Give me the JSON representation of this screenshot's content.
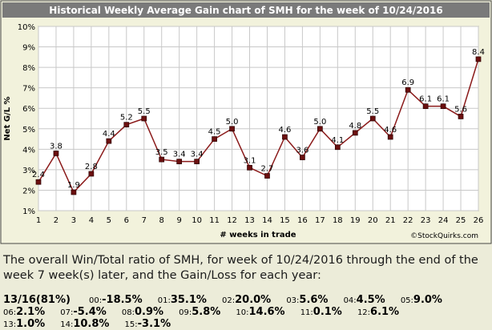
{
  "chart_data": {
    "type": "line",
    "title": "Historical Weekly Average Gain chart of SMH for the week of 10/24/2016",
    "xlabel": "# weeks in trade",
    "ylabel": "Net G/L %",
    "x": [
      1,
      2,
      3,
      4,
      5,
      6,
      7,
      8,
      9,
      10,
      11,
      12,
      13,
      14,
      15,
      16,
      17,
      18,
      19,
      20,
      21,
      22,
      23,
      24,
      25,
      26
    ],
    "values": [
      2.4,
      3.8,
      1.9,
      2.8,
      4.4,
      5.2,
      5.5,
      3.5,
      3.4,
      3.4,
      4.5,
      5.0,
      3.1,
      2.7,
      4.6,
      3.6,
      5.0,
      4.1,
      4.8,
      5.5,
      4.6,
      6.9,
      6.1,
      6.1,
      5.6,
      8.4
    ],
    "value_labels": [
      "2.4",
      "3.8",
      "1.9",
      "2.8",
      "4.4",
      "5.2",
      "5.5",
      "3.5",
      "3.4",
      "3.4",
      "4.5",
      "5.0",
      "3.1",
      "2.7",
      "4.6",
      "3.6",
      "5.0",
      "4.1",
      "4.8",
      "5.5",
      "4.6",
      "6.9",
      "6.1",
      "6.1",
      "5.6",
      "8.4"
    ],
    "y_ticks": [
      "1%",
      "2%",
      "3%",
      "4%",
      "5%",
      "6%",
      "7%",
      "8%",
      "9%",
      "10%"
    ],
    "x_ticks": [
      "1",
      "2",
      "3",
      "4",
      "5",
      "6",
      "7",
      "8",
      "9",
      "10",
      "11",
      "12",
      "13",
      "14",
      "15",
      "16",
      "17",
      "18",
      "19",
      "20",
      "21",
      "22",
      "23",
      "24",
      "25",
      "26"
    ],
    "ylim": [
      1,
      10
    ],
    "xlim": [
      1,
      26
    ],
    "grid": true,
    "watermark": "©StockQuirks.com",
    "colors": {
      "line": "#8b1a1a",
      "marker": "#6b0f0f",
      "title_bar": "#7a7a7a",
      "grid": "#c8c8c8"
    }
  },
  "summary": {
    "text": "The overall Win/Total ratio of SMH, for week of 10/24/2016 through the end of the week 7 week(s) later, and the Gain/Loss for each year:",
    "overall": "13/16(81%)",
    "years": [
      {
        "yr": "00:",
        "val": "-18.5%"
      },
      {
        "yr": "01:",
        "val": "35.1%"
      },
      {
        "yr": "02:",
        "val": "20.0%"
      },
      {
        "yr": "03:",
        "val": "5.6%"
      },
      {
        "yr": "04:",
        "val": "4.5%"
      },
      {
        "yr": "05:",
        "val": "9.0%"
      },
      {
        "yr": "06:",
        "val": "2.1%"
      },
      {
        "yr": "07:",
        "val": "-5.4%"
      },
      {
        "yr": "08:",
        "val": "0.9%"
      },
      {
        "yr": "09:",
        "val": "5.8%"
      },
      {
        "yr": "10:",
        "val": "14.6%"
      },
      {
        "yr": "11:",
        "val": "0.1%"
      },
      {
        "yr": "12:",
        "val": "6.1%"
      },
      {
        "yr": "13:",
        "val": "1.0%"
      },
      {
        "yr": "14:",
        "val": "10.8%"
      },
      {
        "yr": "15:",
        "val": "-3.1%"
      }
    ]
  }
}
